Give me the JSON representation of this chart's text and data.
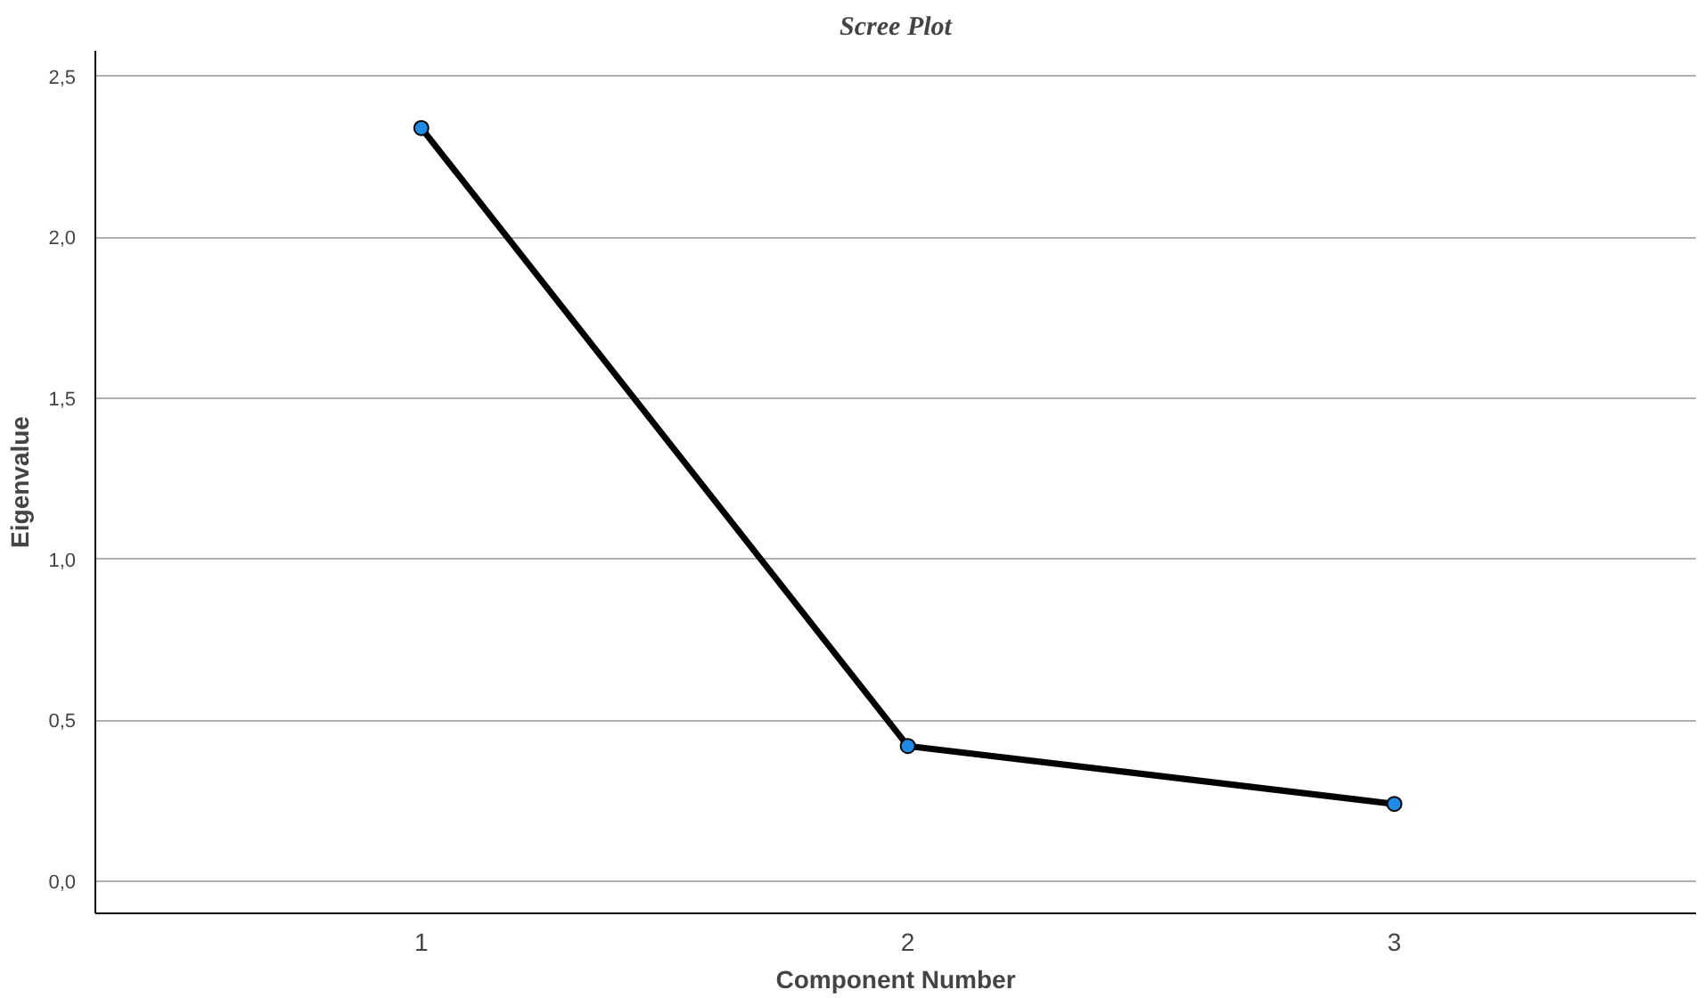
{
  "chart_data": {
    "type": "line",
    "title": "Scree Plot",
    "xlabel": "Component Number",
    "ylabel": "Eigenvalue",
    "categories": [
      "1",
      "2",
      "3"
    ],
    "series": [
      {
        "color": "#000000",
        "values": [
          2.34,
          0.42,
          0.24
        ]
      }
    ],
    "ylim": [
      -0.1,
      2.58
    ],
    "yticks": [
      {
        "value": 0,
        "label": "0,0"
      },
      {
        "value": 0.5,
        "label": "0,5"
      },
      {
        "value": 1,
        "label": "1,0"
      },
      {
        "value": 1.5,
        "label": "1,5"
      },
      {
        "value": 2,
        "label": "2,0"
      },
      {
        "value": 2.5,
        "label": "2,5"
      }
    ],
    "grid": "y",
    "marker": "circle",
    "line_style": "solid"
  }
}
